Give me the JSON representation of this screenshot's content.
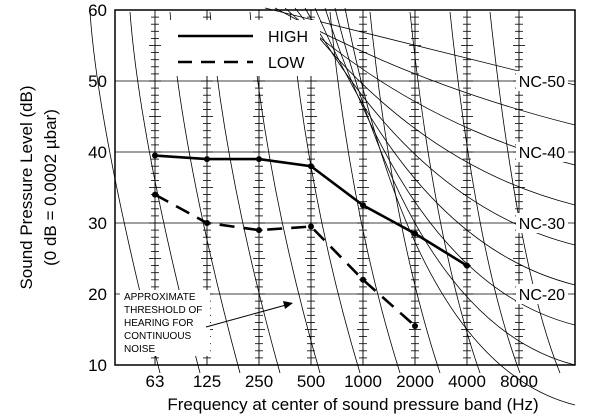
{
  "chart_data": {
    "type": "line",
    "title": "",
    "xlabel": "Frequency at center of sound pressure band (Hz)",
    "ylabel": [
      "Sound Pressure Level (dB)",
      "(0 dB = 0.0002 µbar)"
    ],
    "categories": [
      "63",
      "125",
      "250",
      "500",
      "1000",
      "2000",
      "4000",
      "8000"
    ],
    "ylim": [
      10,
      60
    ],
    "yticks": [
      "10",
      "20",
      "30",
      "40",
      "50",
      "60"
    ],
    "grid": true,
    "legend_position": "top-left",
    "series": [
      {
        "name": "HIGH",
        "style": "solid",
        "values": [
          39.5,
          39,
          39,
          38,
          32.5,
          28.5,
          24,
          null
        ]
      },
      {
        "name": "LOW",
        "style": "dashed",
        "values": [
          34,
          30,
          29,
          29.5,
          22,
          15.5,
          null,
          null
        ]
      }
    ],
    "nc_curve_labels": [
      {
        "label": "NC-50",
        "y": 50
      },
      {
        "label": "NC-40",
        "y": 40
      },
      {
        "label": "NC-30",
        "y": 30
      },
      {
        "label": "NC-20",
        "y": 20
      }
    ],
    "annotations": [
      "APPROXIMATE",
      "THRESHOLD OF",
      "HEARING FOR",
      "CONTINUOUS",
      "NOISE"
    ]
  }
}
